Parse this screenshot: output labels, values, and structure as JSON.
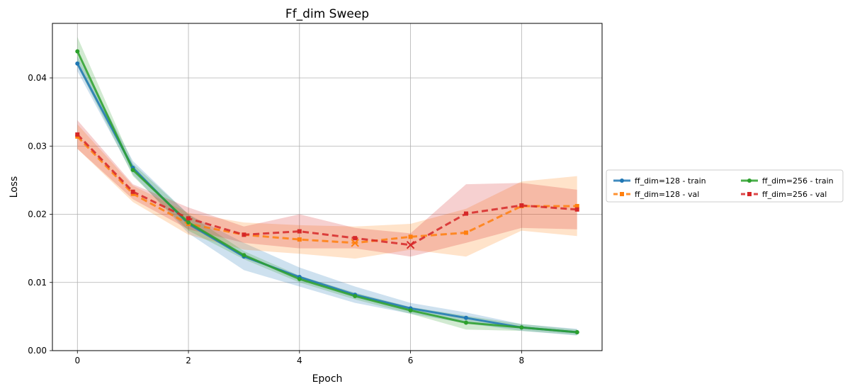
{
  "chart_data": {
    "type": "line",
    "title": "Ff_dim Sweep",
    "xlabel": "Epoch",
    "ylabel": "Loss",
    "xlim": [
      -0.45,
      9.45
    ],
    "ylim": [
      0,
      0.048
    ],
    "xticks": [
      0,
      2,
      4,
      6,
      8
    ],
    "yticks": [
      0.0,
      0.01,
      0.02,
      0.03,
      0.04
    ],
    "ytick_labels": [
      "0.00",
      "0.01",
      "0.02",
      "0.03",
      "0.04"
    ],
    "grid": true,
    "legend_placement": "right-outside",
    "x": [
      0,
      1,
      2,
      3,
      4,
      5,
      6,
      7,
      8,
      9
    ],
    "series": [
      {
        "name": "ff_dim=128 - train",
        "color": "#1f77b4",
        "style": "solid",
        "marker": "circle",
        "values": [
          0.0421,
          0.0268,
          0.0186,
          0.0138,
          0.0108,
          0.0082,
          0.0062,
          0.0048,
          0.0034,
          0.0027
        ],
        "lower": [
          0.041,
          0.0258,
          0.0172,
          0.0118,
          0.0094,
          0.007,
          0.0054,
          0.004,
          0.0029,
          0.0022
        ],
        "upper": [
          0.0432,
          0.0278,
          0.02,
          0.0158,
          0.0122,
          0.0094,
          0.007,
          0.0056,
          0.0039,
          0.0032
        ]
      },
      {
        "name": "ff_dim=128 - val",
        "color": "#ff7f0e",
        "style": "dashed",
        "marker": "square",
        "values": [
          0.0314,
          0.023,
          0.0186,
          0.017,
          0.0163,
          0.0158,
          0.0167,
          0.0173,
          0.0212,
          0.0212
        ],
        "lower": [
          0.0296,
          0.0218,
          0.017,
          0.0148,
          0.0142,
          0.0135,
          0.0148,
          0.0138,
          0.0176,
          0.0168
        ],
        "upper": [
          0.0332,
          0.0242,
          0.0202,
          0.0188,
          0.0184,
          0.0182,
          0.0186,
          0.0208,
          0.0248,
          0.0256
        ],
        "best_index": 5
      },
      {
        "name": "ff_dim=256 - train",
        "color": "#2ca02c",
        "style": "solid",
        "marker": "circle",
        "values": [
          0.0439,
          0.0265,
          0.0188,
          0.014,
          0.0105,
          0.008,
          0.0059,
          0.0041,
          0.0034,
          0.0027
        ],
        "lower": [
          0.0418,
          0.0256,
          0.0176,
          0.0134,
          0.01,
          0.0075,
          0.0054,
          0.0031,
          0.0029,
          0.0023
        ],
        "upper": [
          0.046,
          0.0274,
          0.02,
          0.0146,
          0.011,
          0.0085,
          0.0064,
          0.0051,
          0.0039,
          0.0031
        ]
      },
      {
        "name": "ff_dim=256 - val",
        "color": "#d62728",
        "style": "dashed",
        "marker": "square",
        "values": [
          0.0317,
          0.0233,
          0.0194,
          0.017,
          0.0175,
          0.0165,
          0.0155,
          0.0201,
          0.0213,
          0.0207
        ],
        "lower": [
          0.0296,
          0.0222,
          0.0178,
          0.0158,
          0.015,
          0.015,
          0.0138,
          0.0158,
          0.018,
          0.0178
        ],
        "upper": [
          0.0338,
          0.0244,
          0.021,
          0.0182,
          0.02,
          0.018,
          0.0172,
          0.0244,
          0.0246,
          0.0236
        ],
        "best_index": 6
      }
    ]
  }
}
